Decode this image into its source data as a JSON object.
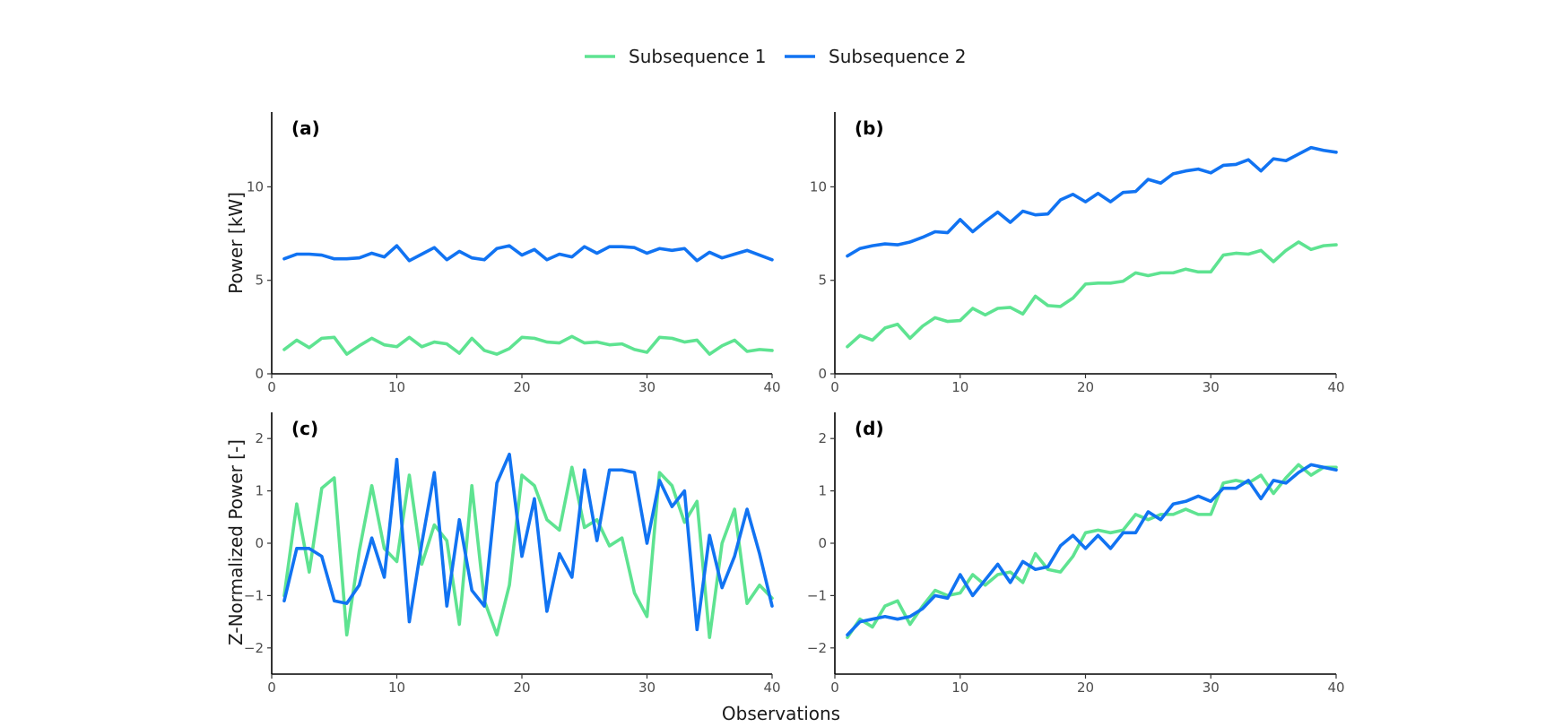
{
  "colors": {
    "series_1": "#5ee391",
    "series_2": "#1173f2"
  },
  "legend": {
    "items": [
      {
        "label": "Subsequence 1",
        "color": "#5ee391"
      },
      {
        "label": "Subsequence 2",
        "color": "#1173f2"
      }
    ]
  },
  "shared_xlabel": "Observations",
  "chart_data": [
    {
      "panel": "(a)",
      "type": "line",
      "ylabel": "Power [kW]",
      "xlim": [
        0,
        40
      ],
      "ylim": [
        0,
        14
      ],
      "xticks": [
        0,
        10,
        20,
        30,
        40
      ],
      "yticks": [
        0,
        5,
        10
      ],
      "x": [
        1,
        2,
        3,
        4,
        5,
        6,
        7,
        8,
        9,
        10,
        11,
        12,
        13,
        14,
        15,
        16,
        17,
        18,
        19,
        20,
        21,
        22,
        23,
        24,
        25,
        26,
        27,
        28,
        29,
        30,
        31,
        32,
        33,
        34,
        35,
        36,
        37,
        38,
        39,
        40
      ],
      "series": [
        {
          "name": "Subsequence 1",
          "color": "#5ee391",
          "values": [
            1.3,
            1.8,
            1.4,
            1.9,
            1.95,
            1.05,
            1.5,
            1.9,
            1.55,
            1.45,
            1.95,
            1.45,
            1.7,
            1.6,
            1.1,
            1.9,
            1.25,
            1.05,
            1.35,
            1.95,
            1.9,
            1.7,
            1.65,
            2.0,
            1.65,
            1.7,
            1.55,
            1.6,
            1.3,
            1.15,
            1.95,
            1.9,
            1.7,
            1.8,
            1.05,
            1.5,
            1.8,
            1.2,
            1.3,
            1.25
          ]
        },
        {
          "name": "Subsequence 2",
          "color": "#1173f2",
          "values": [
            6.15,
            6.4,
            6.4,
            6.35,
            6.15,
            6.15,
            6.2,
            6.45,
            6.25,
            6.85,
            6.05,
            6.4,
            6.75,
            6.1,
            6.55,
            6.2,
            6.1,
            6.7,
            6.85,
            6.35,
            6.65,
            6.1,
            6.4,
            6.25,
            6.8,
            6.45,
            6.8,
            6.8,
            6.75,
            6.45,
            6.7,
            6.6,
            6.7,
            6.05,
            6.5,
            6.2,
            6.4,
            6.6,
            6.35,
            6.1
          ]
        }
      ]
    },
    {
      "panel": "(b)",
      "type": "line",
      "ylabel": "",
      "xlim": [
        0,
        40
      ],
      "ylim": [
        0,
        14
      ],
      "xticks": [
        0,
        10,
        20,
        30,
        40
      ],
      "yticks": [
        0,
        5,
        10
      ],
      "x": [
        1,
        2,
        3,
        4,
        5,
        6,
        7,
        8,
        9,
        10,
        11,
        12,
        13,
        14,
        15,
        16,
        17,
        18,
        19,
        20,
        21,
        22,
        23,
        24,
        25,
        26,
        27,
        28,
        29,
        30,
        31,
        32,
        33,
        34,
        35,
        36,
        37,
        38,
        39,
        40
      ],
      "series": [
        {
          "name": "Subsequence 1",
          "color": "#5ee391",
          "values": [
            1.45,
            2.05,
            1.8,
            2.45,
            2.65,
            1.9,
            2.55,
            3.0,
            2.8,
            2.85,
            3.5,
            3.15,
            3.5,
            3.55,
            3.2,
            4.15,
            3.65,
            3.6,
            4.05,
            4.8,
            4.85,
            4.85,
            4.95,
            5.4,
            5.25,
            5.4,
            5.4,
            5.6,
            5.45,
            5.45,
            6.35,
            6.45,
            6.4,
            6.6,
            6.0,
            6.6,
            7.05,
            6.65,
            6.85,
            6.9
          ]
        },
        {
          "name": "Subsequence 2",
          "color": "#1173f2",
          "values": [
            6.3,
            6.7,
            6.85,
            6.95,
            6.9,
            7.05,
            7.3,
            7.6,
            7.55,
            8.25,
            7.6,
            8.15,
            8.65,
            8.1,
            8.7,
            8.5,
            8.55,
            9.3,
            9.6,
            9.2,
            9.65,
            9.2,
            9.7,
            9.75,
            10.4,
            10.2,
            10.7,
            10.85,
            10.95,
            10.75,
            11.15,
            11.2,
            11.45,
            10.85,
            11.5,
            11.4,
            11.75,
            12.1,
            11.95,
            11.85
          ]
        }
      ]
    },
    {
      "panel": "(c)",
      "type": "line",
      "ylabel": "Z-Normalized Power [-]",
      "xlim": [
        0,
        40
      ],
      "ylim": [
        -2.5,
        2.5
      ],
      "xticks": [
        0,
        10,
        20,
        30,
        40
      ],
      "yticks": [
        -2,
        -1,
        0,
        1,
        2
      ],
      "x": [
        1,
        2,
        3,
        4,
        5,
        6,
        7,
        8,
        9,
        10,
        11,
        12,
        13,
        14,
        15,
        16,
        17,
        18,
        19,
        20,
        21,
        22,
        23,
        24,
        25,
        26,
        27,
        28,
        29,
        30,
        31,
        32,
        33,
        34,
        35,
        36,
        37,
        38,
        39,
        40
      ],
      "series": [
        {
          "name": "Subsequence 1",
          "color": "#5ee391",
          "values": [
            -1.0,
            0.75,
            -0.55,
            1.05,
            1.25,
            -1.75,
            -0.15,
            1.1,
            -0.1,
            -0.35,
            1.3,
            -0.4,
            0.35,
            0.05,
            -1.55,
            1.1,
            -1.1,
            -1.75,
            -0.8,
            1.3,
            1.1,
            0.45,
            0.25,
            1.45,
            0.3,
            0.45,
            -0.05,
            0.1,
            -0.95,
            -1.4,
            1.35,
            1.1,
            0.4,
            0.8,
            -1.8,
            0.0,
            0.65,
            -1.15,
            -0.8,
            -1.05
          ]
        },
        {
          "name": "Subsequence 2",
          "color": "#1173f2",
          "values": [
            -1.1,
            -0.1,
            -0.1,
            -0.25,
            -1.1,
            -1.15,
            -0.8,
            0.1,
            -0.65,
            1.6,
            -1.5,
            0.0,
            1.35,
            -1.2,
            0.45,
            -0.9,
            -1.2,
            1.15,
            1.7,
            -0.25,
            0.85,
            -1.3,
            -0.2,
            -0.65,
            1.4,
            0.05,
            1.4,
            1.4,
            1.35,
            0.0,
            1.2,
            0.7,
            1.0,
            -1.65,
            0.15,
            -0.85,
            -0.25,
            0.65,
            -0.2,
            -1.2
          ]
        }
      ]
    },
    {
      "panel": "(d)",
      "type": "line",
      "ylabel": "",
      "xlim": [
        0,
        40
      ],
      "ylim": [
        -2.5,
        2.5
      ],
      "xticks": [
        0,
        10,
        20,
        30,
        40
      ],
      "yticks": [
        -2,
        -1,
        0,
        1,
        2
      ],
      "x": [
        1,
        2,
        3,
        4,
        5,
        6,
        7,
        8,
        9,
        10,
        11,
        12,
        13,
        14,
        15,
        16,
        17,
        18,
        19,
        20,
        21,
        22,
        23,
        24,
        25,
        26,
        27,
        28,
        29,
        30,
        31,
        32,
        33,
        34,
        35,
        36,
        37,
        38,
        39,
        40
      ],
      "series": [
        {
          "name": "Subsequence 1",
          "color": "#5ee391",
          "values": [
            -1.8,
            -1.45,
            -1.6,
            -1.2,
            -1.1,
            -1.55,
            -1.2,
            -0.9,
            -1.0,
            -0.95,
            -0.6,
            -0.8,
            -0.6,
            -0.55,
            -0.75,
            -0.2,
            -0.5,
            -0.55,
            -0.25,
            0.2,
            0.25,
            0.2,
            0.25,
            0.55,
            0.45,
            0.55,
            0.55,
            0.65,
            0.55,
            0.55,
            1.15,
            1.2,
            1.15,
            1.3,
            0.95,
            1.25,
            1.5,
            1.3,
            1.45,
            1.45
          ]
        },
        {
          "name": "Subsequence 2",
          "color": "#1173f2",
          "values": [
            -1.75,
            -1.5,
            -1.45,
            -1.4,
            -1.45,
            -1.4,
            -1.25,
            -1.0,
            -1.05,
            -0.6,
            -1.0,
            -0.7,
            -0.4,
            -0.75,
            -0.35,
            -0.5,
            -0.45,
            -0.05,
            0.15,
            -0.1,
            0.15,
            -0.1,
            0.2,
            0.2,
            0.6,
            0.45,
            0.75,
            0.8,
            0.9,
            0.8,
            1.05,
            1.05,
            1.2,
            0.85,
            1.2,
            1.15,
            1.35,
            1.5,
            1.45,
            1.4
          ]
        }
      ]
    }
  ]
}
